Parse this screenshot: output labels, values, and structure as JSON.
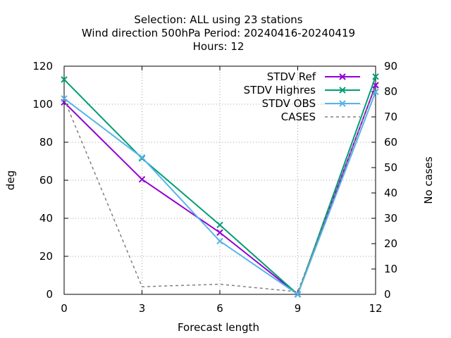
{
  "chart_data": {
    "type": "line",
    "title": [
      "Selection: ALL using    23 stations",
      "Wind direction 500hPa   Period: 20240416-20240419",
      "Hours:  12"
    ],
    "xlabel": "Forecast length",
    "ylabel": "deg",
    "y2label": "No cases",
    "x": [
      0,
      3,
      6,
      9,
      12
    ],
    "xlim": [
      0,
      12
    ],
    "ylim": [
      0,
      120
    ],
    "y2lim": [
      0,
      90
    ],
    "xticks": [
      0,
      3,
      6,
      9,
      12
    ],
    "yticks": [
      0,
      20,
      40,
      60,
      80,
      100,
      120
    ],
    "y2ticks": [
      0,
      10,
      20,
      30,
      40,
      50,
      60,
      70,
      80,
      90
    ],
    "grid": true,
    "legend_position": "top-right",
    "series": [
      {
        "name": "STDV Ref",
        "axis": "y",
        "color": "#9400d3",
        "marker": "x",
        "dash": false,
        "values": [
          101,
          60.5,
          32.5,
          0,
          110
        ]
      },
      {
        "name": "STDV Highres",
        "axis": "y",
        "color": "#009e73",
        "marker": "x",
        "dash": false,
        "values": [
          113,
          71.5,
          36.5,
          0,
          114.5
        ]
      },
      {
        "name": "STDV OBS",
        "axis": "y",
        "color": "#56b4e9",
        "marker": "x",
        "dash": false,
        "values": [
          103,
          72,
          28,
          0,
          106.5
        ]
      },
      {
        "name": "CASES",
        "axis": "y2",
        "color": "#808080",
        "marker": "none",
        "dash": true,
        "values": [
          77,
          3,
          4,
          1,
          82
        ]
      }
    ]
  }
}
